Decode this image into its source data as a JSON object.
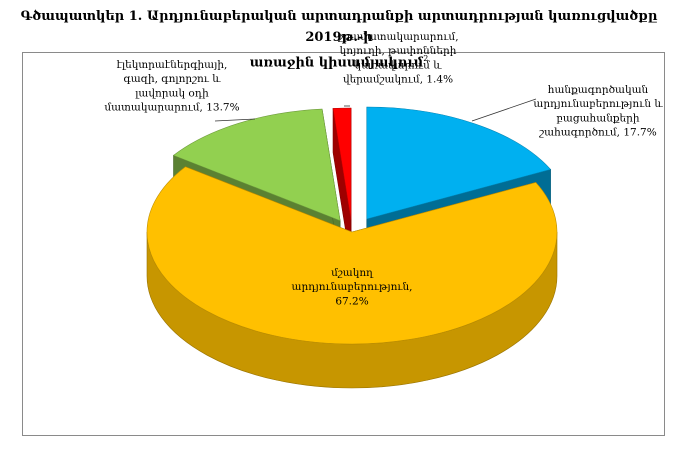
{
  "chart_data": {
    "type": "pie",
    "title_line1": "Գծապատկեր 1.  Արդյունաբերական արտադրանքի արտադրության կառուցվածքը 2019թ.-ի",
    "title_line2": "առաջին կիսամյակում",
    "title_footnote": "2",
    "slices": [
      {
        "label_lines": [
          "հանքագործական",
          "արդյունաբերություն և",
          "բացահանքերի",
          "շահագործում, 17.7%"
        ],
        "value": 17.7,
        "color": "#00B0F0"
      },
      {
        "label_lines": [
          "մշակող",
          "արդյունաբերություն,",
          "67.2%"
        ],
        "value": 67.2,
        "color": "#FFC000"
      },
      {
        "label_lines": [
          "էլեկտրաէներգիայի,",
          "գազի, գոլորշու և",
          "լավորակ օդի",
          "մատակարարում, 13.7%"
        ],
        "value": 13.7,
        "color": "#92D050"
      },
      {
        "label_lines": [
          "ջրամատակարարում,",
          "կոյուղի, թափոնների",
          "կառավարում և",
          "վերամշակում, 1.4%"
        ],
        "value": 1.4,
        "color": "#FF0000"
      }
    ],
    "legend": "none",
    "style": "3d-exploded-pie"
  }
}
